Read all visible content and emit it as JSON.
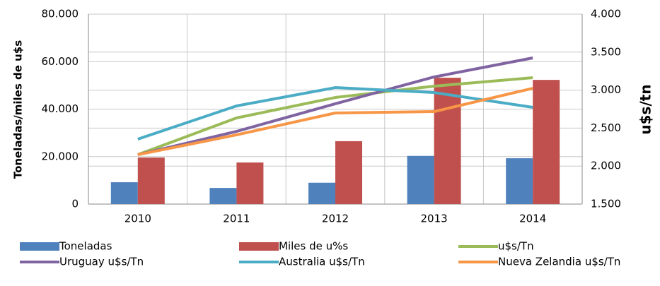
{
  "chart_data": {
    "type": "bar",
    "categories": [
      "2010",
      "2011",
      "2012",
      "2013",
      "2014"
    ],
    "ylabel": "Toneladas/miles de u$s",
    "y2label": "u$s/tn",
    "ylim": [
      0,
      80000
    ],
    "yticks": [
      0,
      {
        "value": 20000,
        "label": "20.000"
      },
      {
        "value": 40000,
        "label": "40.000"
      },
      {
        "value": 60000,
        "label": "60.000"
      },
      {
        "value": 80000,
        "label": "80.000"
      }
    ],
    "y2lim": [
      1500,
      4000
    ],
    "y2ticks": [
      {
        "value": 1500,
        "label": "1.500"
      },
      {
        "value": 2000,
        "label": "2.000"
      },
      {
        "value": 2500,
        "label": "2.500"
      },
      {
        "value": 3000,
        "label": "3.000"
      },
      {
        "value": 3500,
        "label": "3.500"
      },
      {
        "value": 4000,
        "label": "4.000"
      }
    ],
    "grid": true,
    "legend": "bottom",
    "series": [
      {
        "name": "Toneladas",
        "type": "bar",
        "color": "#4f81bd",
        "values": [
          9200,
          6800,
          9000,
          20300,
          19300
        ]
      },
      {
        "name": "Miles de u%s",
        "type": "bar",
        "color": "#c0504d",
        "values": [
          19600,
          17500,
          26500,
          53200,
          52300
        ]
      },
      {
        "name": "u$s/Tn",
        "type": "line",
        "axis": "y2",
        "color": "#9bbb59",
        "values": [
          2150,
          2634,
          2903,
          3052,
          3164
        ]
      },
      {
        "name": "Uruguay u$s/Tn",
        "type": "line",
        "axis": "y2",
        "color": "#8064a2",
        "values": [
          2150,
          2457,
          2820,
          3173,
          3424
        ]
      },
      {
        "name": "Australia u$s/Tn",
        "type": "line",
        "axis": "y2",
        "color": "#4bacc6",
        "values": [
          2355,
          2792,
          3033,
          2968,
          2773
        ]
      },
      {
        "name": "Nueva Zelandia u$s/Tn",
        "type": "line",
        "axis": "y2",
        "color": "#f79646",
        "values": [
          2150,
          2411,
          2699,
          2717,
          3024
        ]
      }
    ]
  }
}
